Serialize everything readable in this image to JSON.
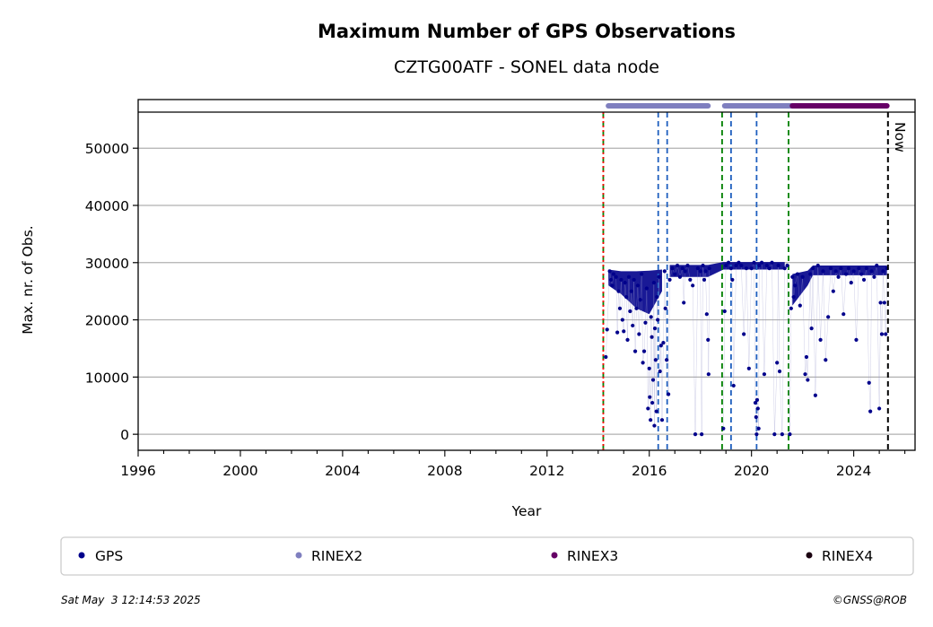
{
  "chart_data": {
    "type": "scatter",
    "title": "Maximum Number of GPS Observations",
    "subtitle": "CZTG00ATF - SONEL data node",
    "xlabel": "Year",
    "ylabel": "Max. nr. of Obs.",
    "xlim": [
      1996,
      2026.4
    ],
    "ylim": [
      -2800,
      58500
    ],
    "x_ticks": [
      "1996",
      "2000",
      "2004",
      "2008",
      "2012",
      "2016",
      "2020",
      "2024"
    ],
    "y_ticks": [
      "0",
      "10000",
      "20000",
      "30000",
      "40000",
      "50000"
    ],
    "grid": "horizontal",
    "now_label": "Now",
    "now_x": 2025.34,
    "colors": {
      "gps": "#00008b",
      "rinex2": "#7f7fbf",
      "rinex3": "#660066",
      "rinex4": "#1a0010",
      "event_green": "#008000",
      "event_blue": "#1f5fbf",
      "event_red": "#ff0000",
      "grid": "#b0b0b0"
    },
    "event_lines": [
      {
        "x": 2014.2,
        "color": "green"
      },
      {
        "x": 2014.2,
        "color": "red"
      },
      {
        "x": 2016.35,
        "color": "blue"
      },
      {
        "x": 2016.7,
        "color": "blue"
      },
      {
        "x": 2018.85,
        "color": "green"
      },
      {
        "x": 2019.2,
        "color": "blue"
      },
      {
        "x": 2020.2,
        "color": "blue"
      },
      {
        "x": 2021.45,
        "color": "green"
      }
    ],
    "format_bars": [
      {
        "name": "RINEX2",
        "start": 2014.4,
        "end": 2018.3
      },
      {
        "name": "RINEX2",
        "start": 2018.95,
        "end": 2021.6
      },
      {
        "name": "RINEX3",
        "start": 2021.6,
        "end": 2025.3
      }
    ],
    "series": [
      {
        "name": "GPS",
        "points": [
          [
            2014.3,
            13500
          ],
          [
            2014.35,
            18300
          ],
          [
            2014.45,
            28500
          ],
          [
            2014.5,
            27000
          ],
          [
            2014.55,
            26000
          ],
          [
            2014.6,
            28000
          ],
          [
            2014.7,
            27500
          ],
          [
            2014.75,
            17800
          ],
          [
            2014.8,
            25000
          ],
          [
            2014.85,
            22000
          ],
          [
            2014.9,
            27000
          ],
          [
            2014.95,
            20000
          ],
          [
            2015.0,
            18000
          ],
          [
            2015.05,
            26500
          ],
          [
            2015.1,
            24000
          ],
          [
            2015.15,
            16500
          ],
          [
            2015.2,
            27500
          ],
          [
            2015.25,
            21500
          ],
          [
            2015.3,
            25000
          ],
          [
            2015.35,
            19000
          ],
          [
            2015.4,
            27000
          ],
          [
            2015.45,
            14500
          ],
          [
            2015.5,
            22000
          ],
          [
            2015.55,
            26000
          ],
          [
            2015.6,
            17500
          ],
          [
            2015.65,
            23500
          ],
          [
            2015.7,
            28000
          ],
          [
            2015.75,
            12500
          ],
          [
            2015.8,
            14500
          ],
          [
            2015.85,
            19500
          ],
          [
            2015.9,
            25500
          ],
          [
            2015.95,
            4500
          ],
          [
            2016.0,
            11500
          ],
          [
            2016.02,
            6500
          ],
          [
            2016.05,
            2500
          ],
          [
            2016.07,
            20500
          ],
          [
            2016.1,
            17000
          ],
          [
            2016.12,
            5500
          ],
          [
            2016.15,
            9500
          ],
          [
            2016.18,
            26500
          ],
          [
            2016.2,
            1500
          ],
          [
            2016.22,
            18500
          ],
          [
            2016.25,
            13000
          ],
          [
            2016.28,
            4000
          ],
          [
            2016.3,
            24000
          ],
          [
            2016.33,
            20000
          ],
          [
            2016.38,
            27500
          ],
          [
            2016.42,
            11000
          ],
          [
            2016.46,
            15500
          ],
          [
            2016.5,
            2500
          ],
          [
            2016.55,
            16000
          ],
          [
            2016.6,
            28500
          ],
          [
            2016.63,
            22000
          ],
          [
            2016.68,
            13000
          ],
          [
            2016.75,
            7000
          ],
          [
            2016.8,
            27000
          ],
          [
            2016.9,
            29000
          ],
          [
            2017.0,
            28000
          ],
          [
            2017.1,
            29500
          ],
          [
            2017.2,
            27500
          ],
          [
            2017.3,
            29000
          ],
          [
            2017.35,
            23000
          ],
          [
            2017.4,
            28500
          ],
          [
            2017.5,
            29500
          ],
          [
            2017.6,
            27000
          ],
          [
            2017.7,
            26000
          ],
          [
            2017.8,
            0
          ],
          [
            2017.9,
            29000
          ],
          [
            2018.0,
            28500
          ],
          [
            2018.05,
            0
          ],
          [
            2018.1,
            29500
          ],
          [
            2018.15,
            27000
          ],
          [
            2018.2,
            28500
          ],
          [
            2018.25,
            21000
          ],
          [
            2018.3,
            16500
          ],
          [
            2018.35,
            29000
          ],
          [
            2018.32,
            10500
          ],
          [
            2018.9,
            1000
          ],
          [
            2018.95,
            21500
          ],
          [
            2019.0,
            29500
          ],
          [
            2019.1,
            30000
          ],
          [
            2019.2,
            29000
          ],
          [
            2019.25,
            27000
          ],
          [
            2019.3,
            8500
          ],
          [
            2019.4,
            29500
          ],
          [
            2019.5,
            30000
          ],
          [
            2019.6,
            29500
          ],
          [
            2019.7,
            17500
          ],
          [
            2019.8,
            29000
          ],
          [
            2019.9,
            11500
          ],
          [
            2020.0,
            29000
          ],
          [
            2020.1,
            30000
          ],
          [
            2020.15,
            5500
          ],
          [
            2020.18,
            3000
          ],
          [
            2020.2,
            0
          ],
          [
            2020.22,
            6000
          ],
          [
            2020.25,
            4500
          ],
          [
            2020.28,
            1000
          ],
          [
            2020.3,
            29500
          ],
          [
            2020.4,
            30000
          ],
          [
            2020.5,
            10500
          ],
          [
            2020.6,
            29500
          ],
          [
            2020.7,
            29000
          ],
          [
            2020.8,
            30000
          ],
          [
            2020.9,
            0
          ],
          [
            2021.0,
            12500
          ],
          [
            2021.05,
            29500
          ],
          [
            2021.1,
            11000
          ],
          [
            2021.2,
            0
          ],
          [
            2021.3,
            29000
          ],
          [
            2021.4,
            29500
          ],
          [
            2021.5,
            0
          ],
          [
            2021.55,
            22000
          ],
          [
            2021.6,
            27500
          ],
          [
            2021.65,
            24000
          ],
          [
            2021.7,
            26000
          ],
          [
            2021.8,
            28000
          ],
          [
            2021.9,
            22500
          ],
          [
            2022.0,
            27500
          ],
          [
            2022.1,
            10500
          ],
          [
            2022.15,
            13500
          ],
          [
            2022.2,
            9500
          ],
          [
            2022.3,
            28000
          ],
          [
            2022.35,
            18500
          ],
          [
            2022.4,
            29000
          ],
          [
            2022.5,
            6800
          ],
          [
            2022.6,
            29500
          ],
          [
            2022.7,
            16500
          ],
          [
            2022.8,
            28500
          ],
          [
            2022.9,
            13000
          ],
          [
            2023.0,
            20500
          ],
          [
            2023.1,
            29000
          ],
          [
            2023.2,
            25000
          ],
          [
            2023.3,
            28500
          ],
          [
            2023.4,
            27500
          ],
          [
            2023.5,
            29000
          ],
          [
            2023.6,
            21000
          ],
          [
            2023.7,
            28000
          ],
          [
            2023.8,
            29000
          ],
          [
            2023.9,
            26500
          ],
          [
            2024.0,
            28500
          ],
          [
            2024.1,
            16500
          ],
          [
            2024.2,
            29000
          ],
          [
            2024.3,
            28000
          ],
          [
            2024.4,
            27000
          ],
          [
            2024.5,
            29000
          ],
          [
            2024.6,
            9000
          ],
          [
            2024.65,
            4000
          ],
          [
            2024.7,
            28500
          ],
          [
            2024.8,
            27500
          ],
          [
            2024.9,
            29500
          ],
          [
            2025.0,
            4500
          ],
          [
            2025.05,
            23000
          ],
          [
            2025.1,
            17500
          ],
          [
            2025.15,
            28500
          ],
          [
            2025.2,
            23000
          ],
          [
            2025.25,
            17500
          ],
          [
            2025.3,
            29000
          ]
        ],
        "band": [
          [
            2014.4,
            26000,
            28800
          ],
          [
            2014.9,
            24500,
            28500
          ],
          [
            2015.5,
            22000,
            28500
          ],
          [
            2016.0,
            21000,
            28600
          ],
          [
            2016.5,
            25000,
            28800
          ],
          [
            2016.8,
            27500,
            29600
          ],
          [
            2018.3,
            27500,
            29600
          ],
          [
            2018.9,
            28800,
            30100
          ],
          [
            2021.3,
            28800,
            30100
          ],
          [
            2021.6,
            22500,
            28000
          ],
          [
            2022.2,
            26000,
            28600
          ],
          [
            2022.4,
            27800,
            29500
          ],
          [
            2025.3,
            27800,
            29500
          ]
        ]
      }
    ],
    "legend": {
      "placement": "bottom",
      "entries": [
        "GPS",
        "RINEX2",
        "RINEX3",
        "RINEX4"
      ]
    }
  },
  "footer": {
    "timestamp": "Sat May  3 12:14:53 2025",
    "credit": "©GNSS@ROB"
  }
}
